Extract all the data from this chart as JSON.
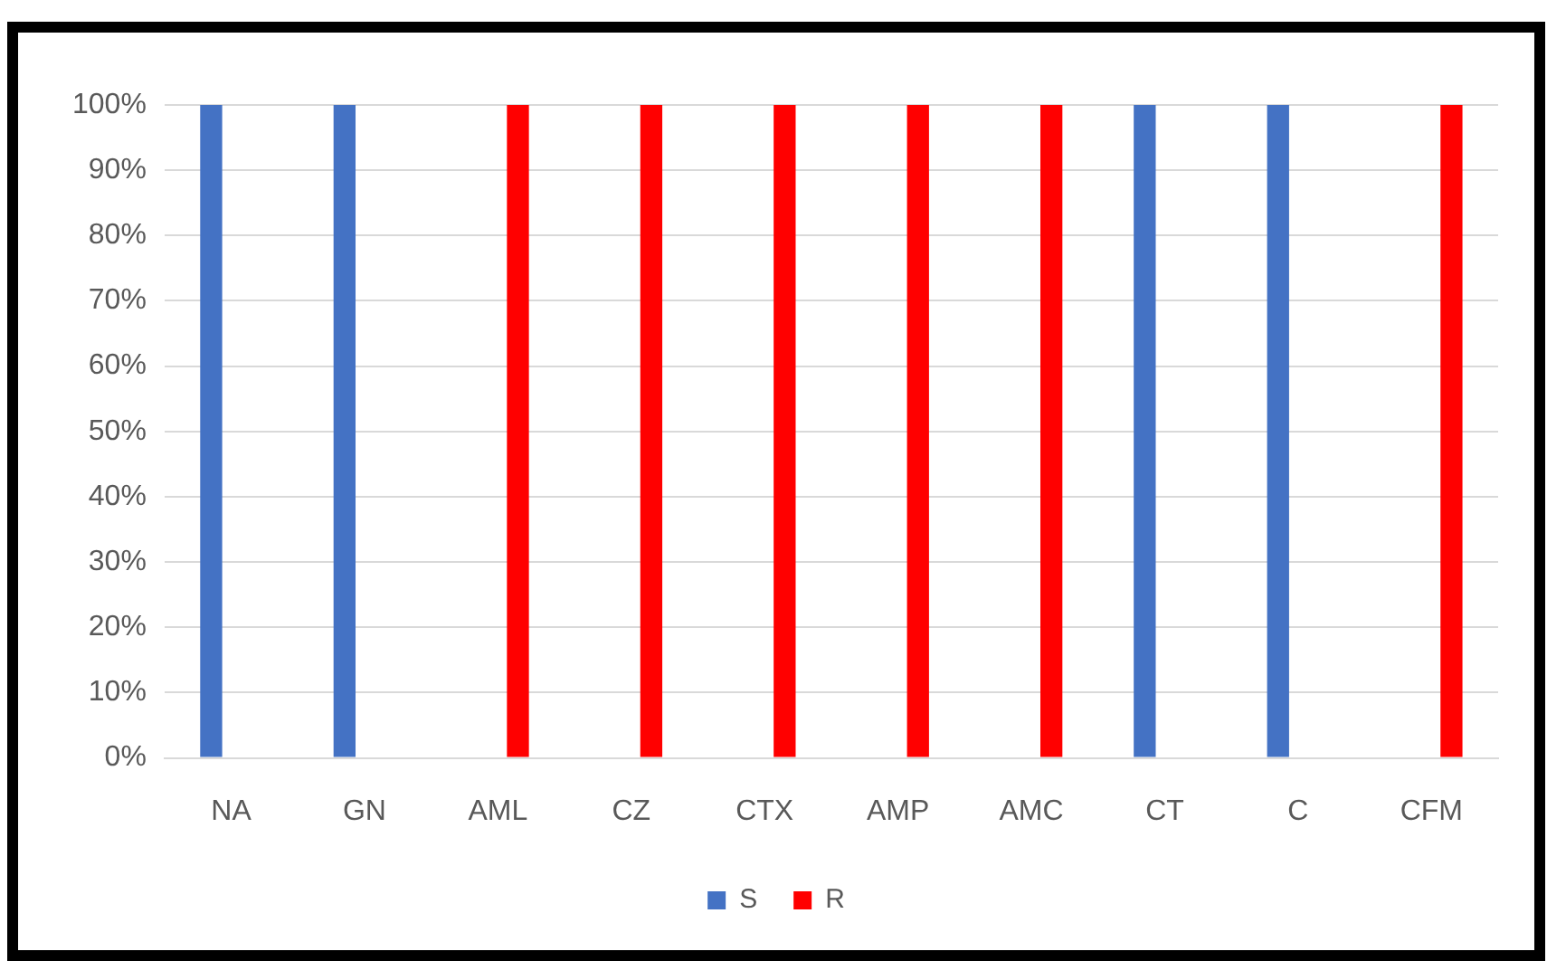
{
  "chart_data": {
    "type": "bar",
    "categories": [
      "NA",
      "GN",
      "AML",
      "CZ",
      "CTX",
      "AMP",
      "AMC",
      "CT",
      "C",
      "CFM"
    ],
    "series": [
      {
        "name": "S",
        "color": "#4472c4",
        "values": [
          100,
          100,
          0,
          0,
          0,
          0,
          0,
          100,
          100,
          0
        ]
      },
      {
        "name": "R",
        "color": "#ff0000",
        "values": [
          0,
          0,
          100,
          100,
          100,
          100,
          100,
          0,
          0,
          100
        ]
      }
    ],
    "ylim": [
      0,
      100
    ],
    "yticks": [
      {
        "value": 0,
        "label": "0%"
      },
      {
        "value": 10,
        "label": "10%"
      },
      {
        "value": 20,
        "label": "20%"
      },
      {
        "value": 30,
        "label": "30%"
      },
      {
        "value": 40,
        "label": "40%"
      },
      {
        "value": 50,
        "label": "50%"
      },
      {
        "value": 60,
        "label": "60%"
      },
      {
        "value": 70,
        "label": "70%"
      },
      {
        "value": 80,
        "label": "80%"
      },
      {
        "value": 90,
        "label": "90%"
      },
      {
        "value": 100,
        "label": "100%"
      }
    ],
    "grid": "y",
    "legend": "bottom"
  }
}
